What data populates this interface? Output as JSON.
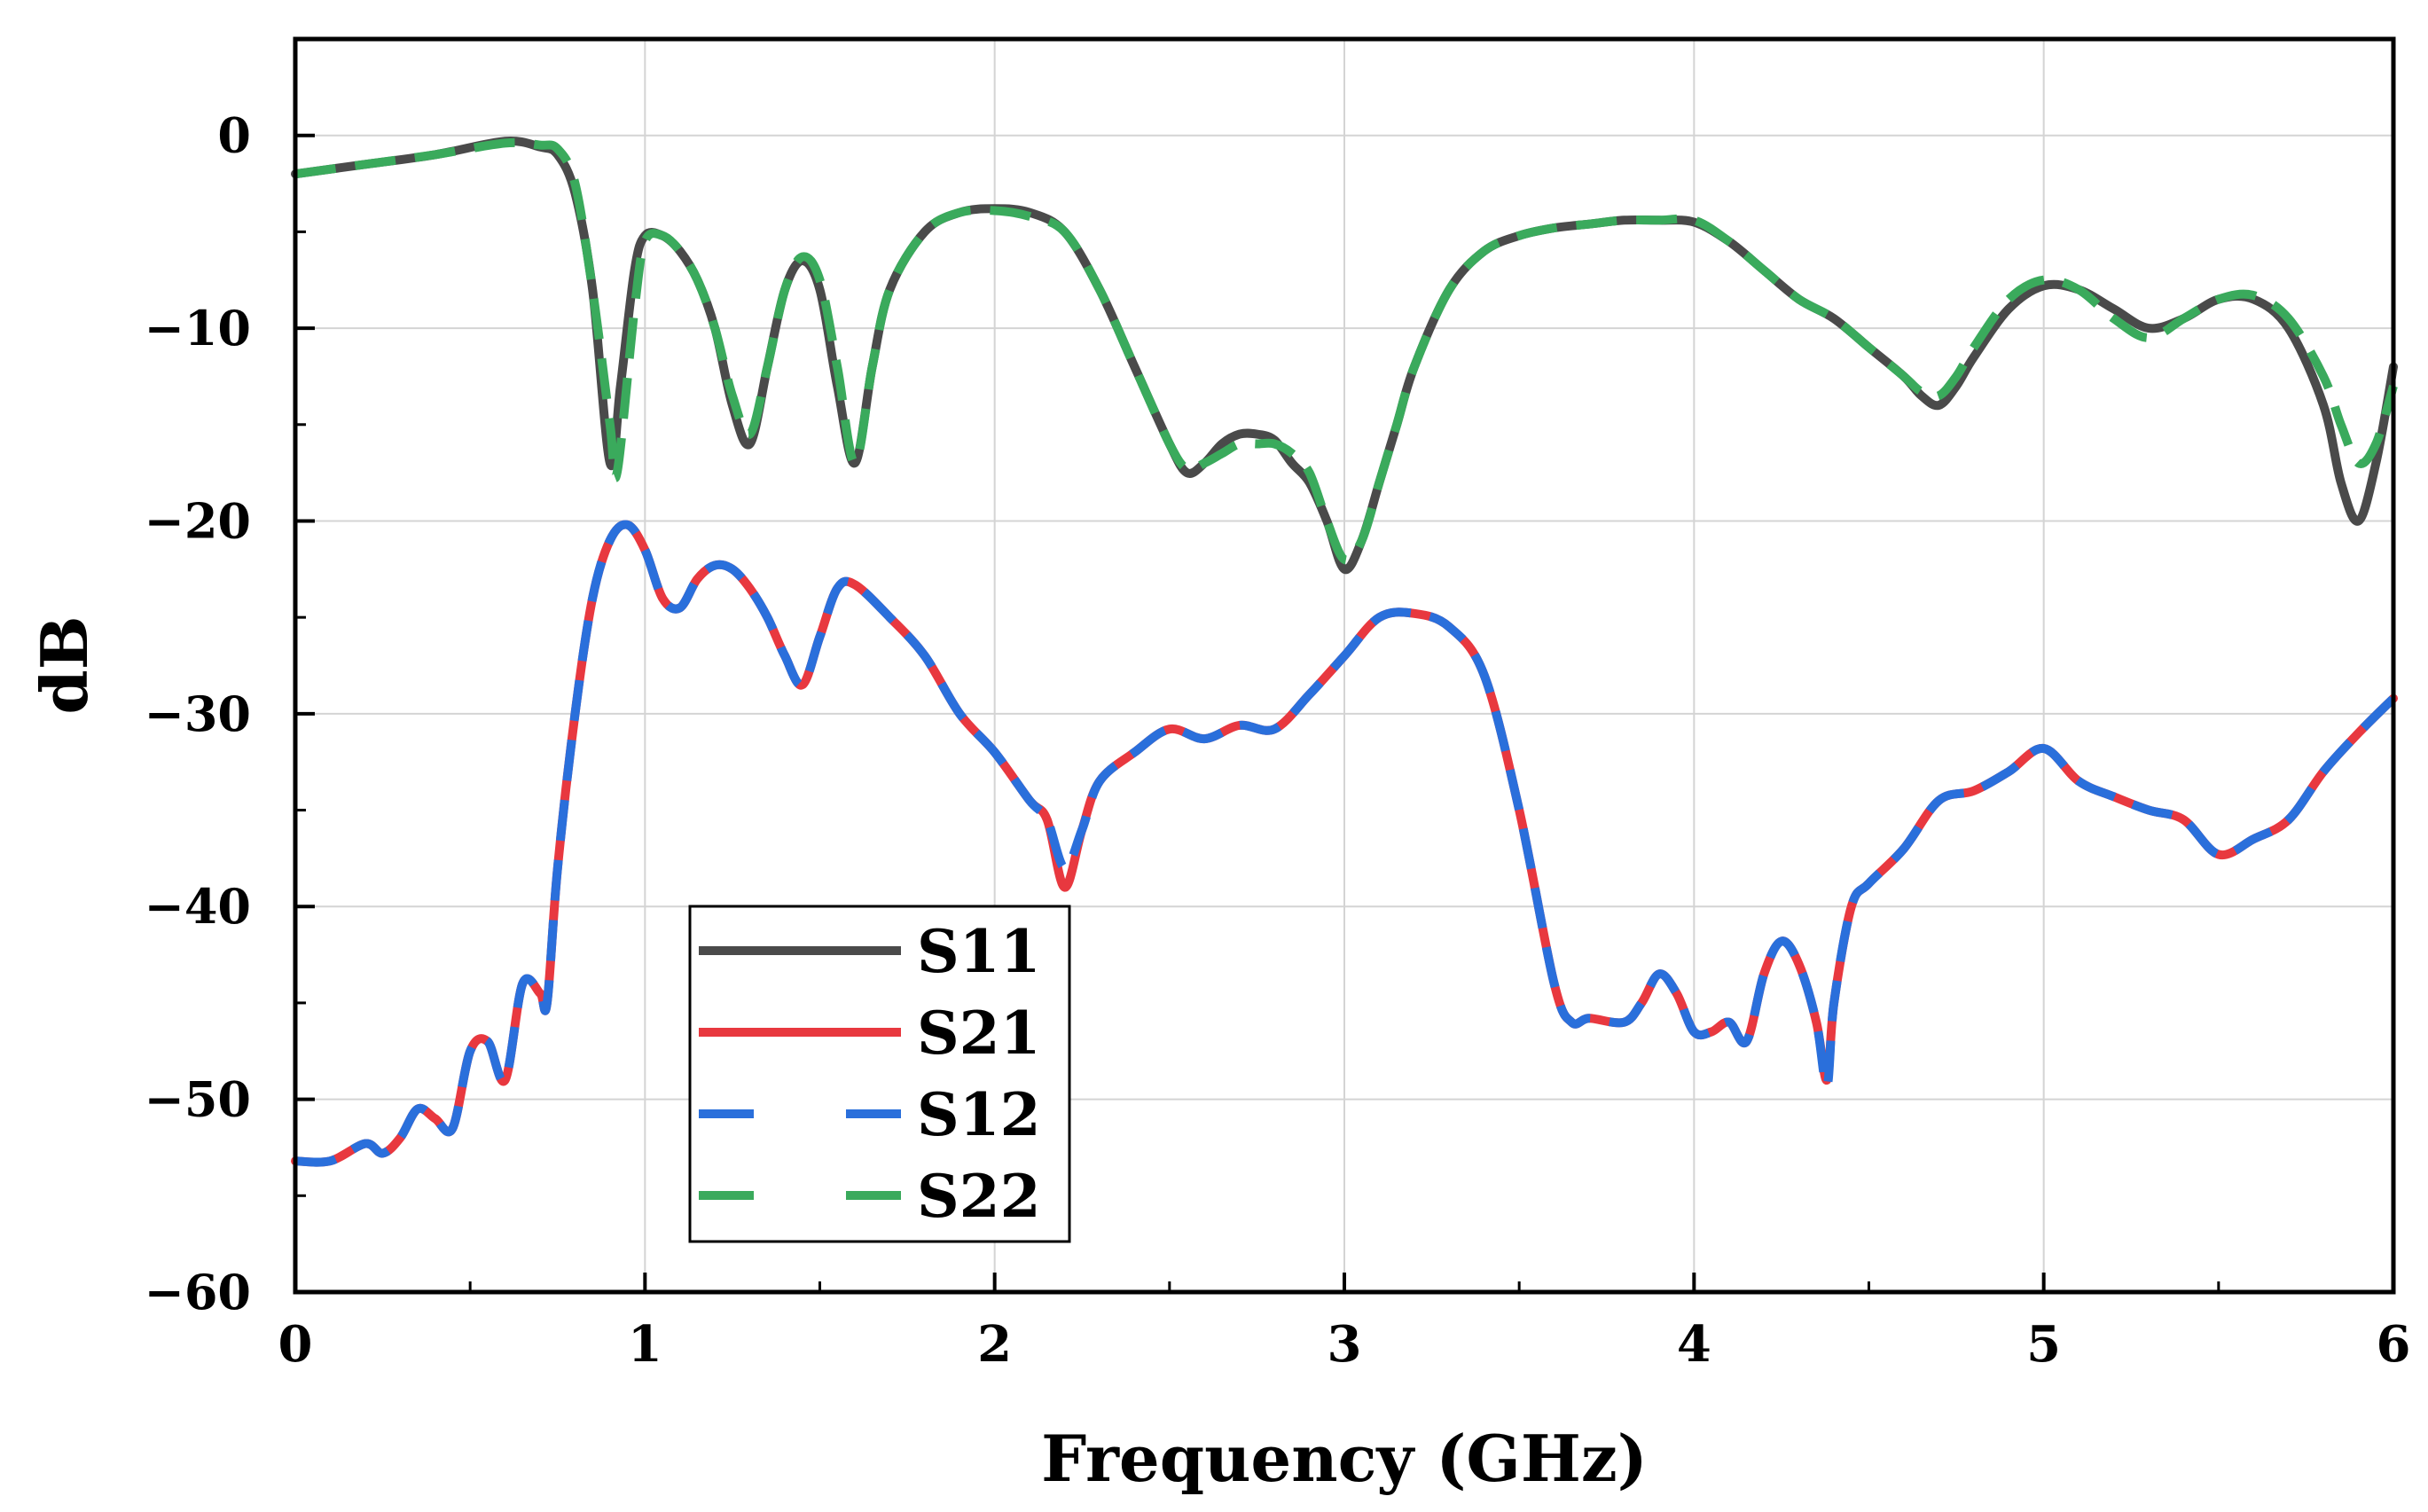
{
  "chart_data": {
    "type": "line",
    "xlabel": "Frequency (GHz)",
    "ylabel": "dB",
    "xlim": [
      0,
      6
    ],
    "ylim": [
      -60,
      5
    ],
    "xticks": [
      0,
      1,
      2,
      3,
      4,
      5,
      6
    ],
    "xtick_labels": [
      "0",
      "1",
      "2",
      "3",
      "4",
      "5",
      "6"
    ],
    "yticks": [
      0,
      -10,
      -20,
      -30,
      -40,
      -50,
      -60
    ],
    "ytick_labels": [
      "0",
      "−10",
      "−20",
      "−30",
      "−40",
      "−50",
      "−60"
    ],
    "grid": true,
    "legend_position": "lower-left",
    "series": [
      {
        "name": "S11",
        "color": "#4a4a4a",
        "style": "solid",
        "x": [
          0,
          0.2,
          0.4,
          0.6,
          0.7,
          0.75,
          0.8,
          0.85,
          0.9,
          0.93,
          0.97,
          1.0,
          1.05,
          1.1,
          1.15,
          1.2,
          1.25,
          1.3,
          1.35,
          1.4,
          1.45,
          1.5,
          1.55,
          1.6,
          1.65,
          1.7,
          1.8,
          1.9,
          2.0,
          2.1,
          2.2,
          2.3,
          2.4,
          2.5,
          2.55,
          2.6,
          2.65,
          2.7,
          2.75,
          2.8,
          2.85,
          2.9,
          2.95,
          3.0,
          3.05,
          3.1,
          3.15,
          3.2,
          3.3,
          3.4,
          3.5,
          3.6,
          3.7,
          3.8,
          3.9,
          4.0,
          4.1,
          4.2,
          4.3,
          4.4,
          4.5,
          4.6,
          4.65,
          4.7,
          4.75,
          4.8,
          4.9,
          5.0,
          5.1,
          5.2,
          5.3,
          5.4,
          5.5,
          5.6,
          5.7,
          5.8,
          5.85,
          5.9,
          5.95,
          6.0
        ],
        "y": [
          -2,
          -1.5,
          -1,
          -0.3,
          -0.6,
          -1,
          -3,
          -8,
          -17,
          -13,
          -7,
          -5.2,
          -5.2,
          -6,
          -7.5,
          -10,
          -14,
          -16,
          -12,
          -8,
          -6.5,
          -8,
          -13,
          -17,
          -12,
          -8,
          -5,
          -4,
          -3.8,
          -4,
          -5,
          -8,
          -12,
          -16,
          -17.5,
          -17,
          -16,
          -15.5,
          -15.5,
          -15.8,
          -17,
          -18,
          -20,
          -22.5,
          -21,
          -18,
          -15,
          -12,
          -8,
          -6,
          -5.2,
          -4.8,
          -4.6,
          -4.4,
          -4.4,
          -4.5,
          -5.5,
          -7,
          -8.5,
          -9.5,
          -11,
          -12.5,
          -13.5,
          -14,
          -13,
          -11.5,
          -9,
          -7.8,
          -8,
          -9,
          -10,
          -9.5,
          -8.5,
          -8.5,
          -10,
          -14,
          -18,
          -20,
          -17,
          -12
        ]
      },
      {
        "name": "S21",
        "color": "#e8383f",
        "style": "solid",
        "x": [
          0,
          0.1,
          0.2,
          0.25,
          0.3,
          0.35,
          0.4,
          0.45,
          0.5,
          0.55,
          0.6,
          0.65,
          0.7,
          0.72,
          0.75,
          0.8,
          0.85,
          0.9,
          0.95,
          1.0,
          1.05,
          1.1,
          1.15,
          1.2,
          1.25,
          1.3,
          1.35,
          1.4,
          1.45,
          1.5,
          1.55,
          1.6,
          1.7,
          1.8,
          1.9,
          2.0,
          2.1,
          2.15,
          2.2,
          2.25,
          2.3,
          2.4,
          2.5,
          2.6,
          2.7,
          2.8,
          2.9,
          3.0,
          3.1,
          3.2,
          3.3,
          3.4,
          3.5,
          3.6,
          3.65,
          3.7,
          3.8,
          3.85,
          3.9,
          3.95,
          4.0,
          4.05,
          4.1,
          4.15,
          4.2,
          4.25,
          4.3,
          4.35,
          4.38,
          4.4,
          4.45,
          4.5,
          4.6,
          4.7,
          4.8,
          4.9,
          5.0,
          5.1,
          5.2,
          5.3,
          5.4,
          5.5,
          5.6,
          5.7,
          5.8,
          5.9,
          6.0
        ],
        "y": [
          -53.2,
          -53.2,
          -52.3,
          -52.8,
          -52,
          -50.5,
          -51,
          -51.5,
          -47.5,
          -47,
          -49,
          -44,
          -44.5,
          -45,
          -38,
          -30,
          -24,
          -21,
          -20.2,
          -21.5,
          -24,
          -24.5,
          -23,
          -22.3,
          -22.5,
          -23.5,
          -25,
          -27,
          -28.5,
          -26,
          -23.5,
          -23.3,
          -25,
          -27,
          -30,
          -32,
          -34.5,
          -35.5,
          -39,
          -36,
          -33.5,
          -32,
          -30.8,
          -31.3,
          -30.6,
          -30.8,
          -29,
          -27,
          -25,
          -24.8,
          -25.5,
          -28,
          -35,
          -44,
          -46,
          -45.8,
          -46,
          -45,
          -43.5,
          -44.5,
          -46.5,
          -46.5,
          -46,
          -47,
          -43.5,
          -41.8,
          -43,
          -46,
          -49,
          -45,
          -40,
          -38.8,
          -37,
          -34.5,
          -34,
          -33,
          -31.8,
          -33.5,
          -34.3,
          -35,
          -35.5,
          -37.3,
          -36.5,
          -35.5,
          -33,
          -31,
          -29.2
        ]
      },
      {
        "name": "S12",
        "color": "#2a6fdb",
        "style": "dashed",
        "x": [
          0,
          0.1,
          0.2,
          0.25,
          0.3,
          0.35,
          0.4,
          0.45,
          0.5,
          0.55,
          0.6,
          0.65,
          0.7,
          0.72,
          0.75,
          0.8,
          0.85,
          0.9,
          0.95,
          1.0,
          1.05,
          1.1,
          1.15,
          1.2,
          1.25,
          1.3,
          1.35,
          1.4,
          1.45,
          1.5,
          1.55,
          1.6,
          1.7,
          1.8,
          1.9,
          2.0,
          2.1,
          2.15,
          2.2,
          2.25,
          2.3,
          2.4,
          2.5,
          2.6,
          2.7,
          2.8,
          2.9,
          3.0,
          3.1,
          3.2,
          3.3,
          3.4,
          3.5,
          3.6,
          3.65,
          3.7,
          3.8,
          3.85,
          3.9,
          3.95,
          4.0,
          4.05,
          4.1,
          4.15,
          4.2,
          4.25,
          4.3,
          4.35,
          4.38,
          4.4,
          4.45,
          4.5,
          4.6,
          4.7,
          4.8,
          4.9,
          5.0,
          5.1,
          5.2,
          5.3,
          5.4,
          5.5,
          5.6,
          5.7,
          5.8,
          5.9,
          6.0
        ],
        "y": [
          -53.2,
          -53.2,
          -52.3,
          -52.8,
          -52,
          -50.5,
          -51,
          -51.5,
          -47.5,
          -47,
          -49,
          -44,
          -44.5,
          -45,
          -38,
          -30,
          -24,
          -21,
          -20.2,
          -21.5,
          -24,
          -24.5,
          -23,
          -22.3,
          -22.5,
          -23.5,
          -25,
          -27,
          -28.5,
          -26,
          -23.5,
          -23.3,
          -25,
          -27,
          -30,
          -32,
          -34.5,
          -35.5,
          -38,
          -36,
          -33.5,
          -32,
          -30.8,
          -31.3,
          -30.6,
          -30.8,
          -29,
          -27,
          -25,
          -24.8,
          -25.5,
          -28,
          -35,
          -44,
          -46,
          -45.8,
          -46,
          -45,
          -43.5,
          -44.5,
          -46.5,
          -46.5,
          -46,
          -47,
          -43.5,
          -41.8,
          -43,
          -46,
          -49.3,
          -45,
          -40,
          -38.8,
          -37,
          -34.5,
          -34,
          -33,
          -31.8,
          -33.5,
          -34.3,
          -35,
          -35.5,
          -37.3,
          -36.5,
          -35.5,
          -33,
          -31,
          -29.2
        ]
      },
      {
        "name": "S22",
        "color": "#3aaa5c",
        "style": "dashed",
        "x": [
          0,
          0.2,
          0.4,
          0.6,
          0.7,
          0.75,
          0.8,
          0.85,
          0.9,
          0.92,
          0.97,
          1.0,
          1.05,
          1.1,
          1.15,
          1.2,
          1.25,
          1.3,
          1.35,
          1.4,
          1.45,
          1.5,
          1.55,
          1.6,
          1.65,
          1.7,
          1.8,
          1.9,
          2.0,
          2.1,
          2.2,
          2.3,
          2.4,
          2.5,
          2.55,
          2.6,
          2.65,
          2.7,
          2.75,
          2.8,
          2.85,
          2.9,
          2.95,
          3.0,
          3.05,
          3.1,
          3.15,
          3.2,
          3.3,
          3.4,
          3.5,
          3.6,
          3.7,
          3.8,
          3.9,
          4.0,
          4.1,
          4.2,
          4.3,
          4.4,
          4.5,
          4.6,
          4.65,
          4.7,
          4.75,
          4.8,
          4.9,
          5.0,
          5.1,
          5.2,
          5.3,
          5.4,
          5.5,
          5.6,
          5.7,
          5.8,
          5.85,
          5.9,
          5.95,
          6.0
        ],
        "y": [
          -2,
          -1.5,
          -1,
          -0.4,
          -0.5,
          -0.7,
          -2.5,
          -8,
          -15,
          -17.5,
          -9,
          -5.5,
          -5.2,
          -6,
          -7.5,
          -10,
          -13.5,
          -15.5,
          -12,
          -8,
          -6.3,
          -7.5,
          -12,
          -17,
          -12,
          -8,
          -5,
          -4,
          -3.9,
          -4.2,
          -5,
          -8,
          -12,
          -16,
          -17.3,
          -17,
          -16.5,
          -16,
          -16,
          -16,
          -16.5,
          -17.5,
          -20,
          -22,
          -21,
          -18,
          -15,
          -12,
          -8,
          -6,
          -5.2,
          -4.8,
          -4.6,
          -4.4,
          -4.4,
          -4.4,
          -5.5,
          -7,
          -8.5,
          -9.5,
          -11,
          -12.5,
          -13.3,
          -13.5,
          -12.5,
          -11,
          -8.5,
          -7.5,
          -8,
          -9.5,
          -10.5,
          -9.5,
          -8.5,
          -8.3,
          -9.5,
          -12.5,
          -15,
          -17,
          -16,
          -13
        ]
      }
    ]
  }
}
